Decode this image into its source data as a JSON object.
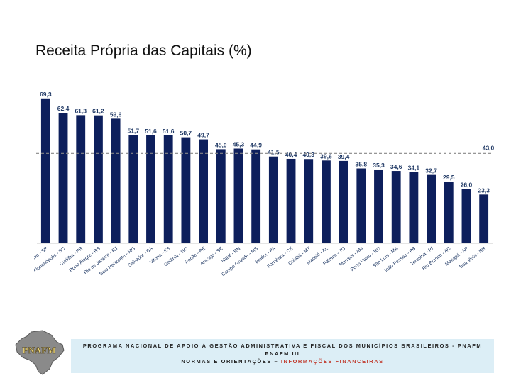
{
  "slide": {
    "title": "Receita Própria das Capitais (%)"
  },
  "chart_data": {
    "type": "bar",
    "title": "Receita Própria das Capitais (%)",
    "xlabel": "",
    "ylabel": "",
    "ylim": [
      0,
      75
    ],
    "grid": false,
    "legend": "none",
    "bar_color": "#0d1f5c",
    "reference_line": {
      "value": 43.0,
      "label": "43,0",
      "style": "dashed",
      "color": "#888888"
    },
    "categories": [
      "São Paulo - SP",
      "Florianópolis - SC",
      "Curitiba - PR",
      "Porto Alegre - RS",
      "Rio de Janeiro - RJ",
      "Belo Horizonte - MG",
      "Salvador - BA",
      "Vitória - ES",
      "Goiânia - GO",
      "Recife - PE",
      "Aracaju - SE",
      "Natal - RN",
      "Campo Grande - MS",
      "Belém - PA",
      "Fortaleza - CE",
      "Cuiabá - MT",
      "Maceió - AL",
      "Palmas - TO",
      "Manaus - AM",
      "Porto Velho - RO",
      "São Luís - MA",
      "João Pessoa - PB",
      "Teresina - PI",
      "Rio Branco - AC",
      "Macapá - AP",
      "Boa Vista - RR"
    ],
    "values": [
      69.3,
      62.4,
      61.3,
      61.2,
      59.6,
      51.7,
      51.6,
      51.6,
      50.7,
      49.7,
      45.0,
      45.3,
      44.9,
      41.5,
      40.4,
      40.3,
      39.6,
      39.4,
      35.8,
      35.3,
      34.6,
      34.1,
      32.7,
      29.5,
      26.0,
      23.3
    ],
    "value_labels": [
      "69,3",
      "62,4",
      "61,3",
      "61,2",
      "59,6",
      "51,7",
      "51,6",
      "51,6",
      "50,7",
      "49,7",
      "45,0",
      "45,3",
      "44,9",
      "41,5",
      "40,4",
      "40,3",
      "39,6",
      "39,4",
      "35,8",
      "35,3",
      "34,6",
      "34,1",
      "32,7",
      "29,5",
      "26,0",
      "23,3"
    ]
  },
  "footer": {
    "logo_text": "PNAFM",
    "line1": "PROGRAMA NACIONAL DE APOIO À GESTÃO ADMINISTRATIVA E FISCAL DOS MUNICÍPIOS BRASILEIROS - PNAFM",
    "line2": "PNAFM III",
    "line3_prefix": "NORMAS E ORIENTAÇÕES – ",
    "line3_accent": "INFORMAÇÕES FINANCEIRAS"
  }
}
